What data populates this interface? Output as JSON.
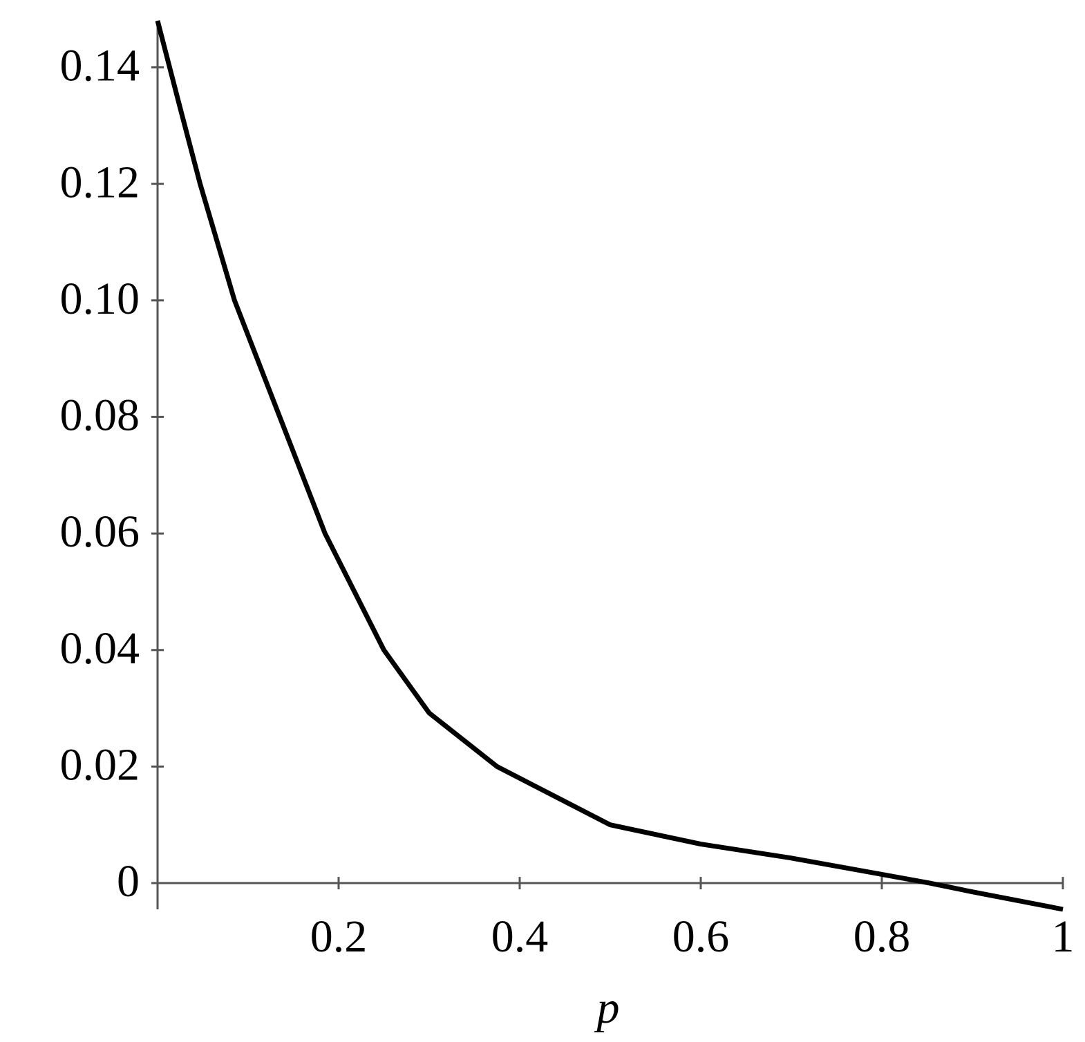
{
  "chart_data": {
    "type": "line",
    "x_label": "p",
    "x": [
      0,
      0.025,
      0.047,
      0.085,
      0.135,
      0.185,
      0.25,
      0.3,
      0.375,
      0.45,
      0.5,
      0.6,
      0.7,
      0.8,
      0.853,
      0.9,
      1
    ],
    "series": [
      {
        "color": "#000000",
        "values": [
          0.148,
          0.133,
          0.12,
          0.1,
          0.08,
          0.06,
          0.04,
          0.0292,
          0.02,
          0.014,
          0.01,
          0.0067,
          0.0043,
          0.0015,
          0,
          -0.0015,
          -0.0045
        ]
      }
    ],
    "xlim": [
      0,
      1
    ],
    "ylim": [
      -0.0045,
      0.148
    ],
    "xticks": [
      0.2,
      0.4,
      0.6,
      0.8,
      1
    ],
    "yticks": [
      0,
      0.02,
      0.04,
      0.06,
      0.08,
      {
        "value": 0.1,
        "label": "0.10"
      },
      0.12,
      0.14
    ],
    "grid": false
  }
}
